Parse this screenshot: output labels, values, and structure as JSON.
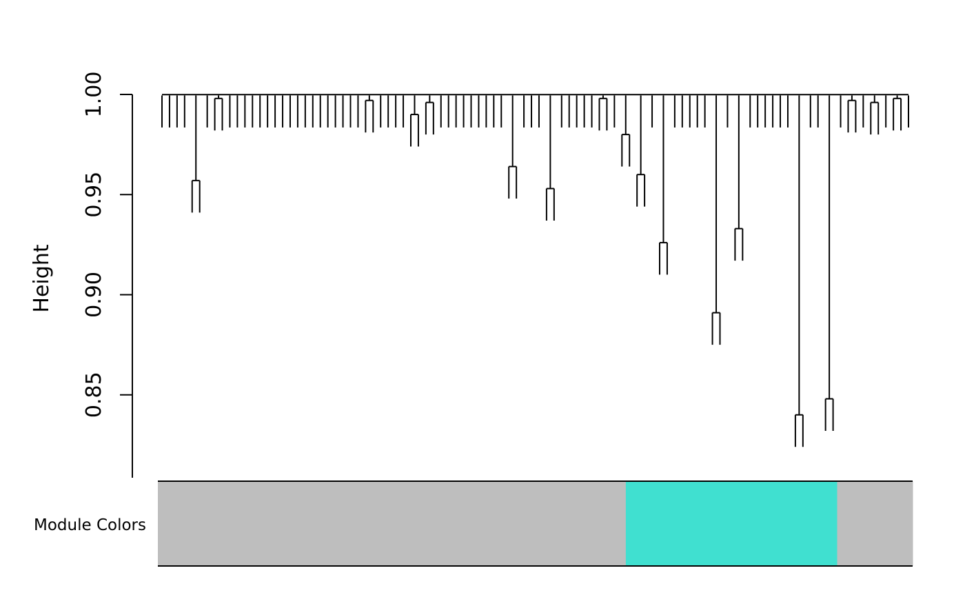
{
  "chart_data": {
    "type": "dendrogram",
    "title": "",
    "xlabel": "",
    "ylabel": "Height",
    "ylim": [
      0.81,
      1.0
    ],
    "yticks": [
      0.85,
      0.9,
      0.95,
      1.0
    ],
    "ytick_labels": [
      "0.85",
      "0.90",
      "0.95",
      "1.00"
    ],
    "grid": false,
    "leaf_count": 100,
    "module_track_label": "Module Colors",
    "modules": [
      {
        "color": "#BEBEBE",
        "leaf_start": 0,
        "leaf_end": 61
      },
      {
        "color": "#40E0D0",
        "leaf_start": 62,
        "leaf_end": 89
      },
      {
        "color": "#BEBEBE",
        "leaf_start": 90,
        "leaf_end": 99
      }
    ],
    "merge_heights_min": 0.8236,
    "merge_heights_max": 0.9999
  },
  "colors": {
    "grey_module": "#BEBEBE",
    "turquoise_module": "#40E0D0",
    "lines": "#000000"
  }
}
